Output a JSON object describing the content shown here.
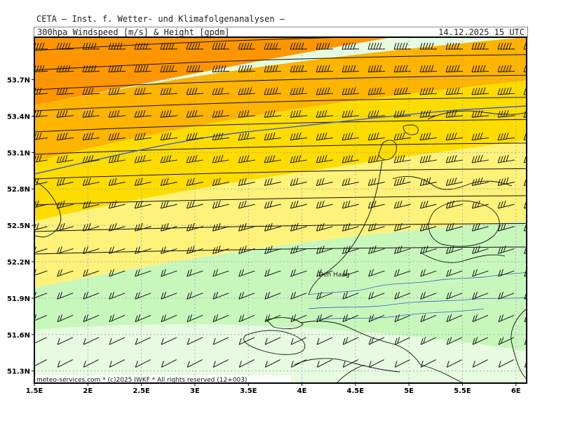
{
  "header": {
    "provider": "CETA – Inst. f. Wetter- und Klimafolgenanalysen –",
    "parameter": "300hpa Windspeed [m/s] & Height [gpdm]",
    "valid_time": "14.12.2025 15 UTC"
  },
  "map": {
    "lon_range": [
      1.5,
      6.1
    ],
    "lat_range": [
      51.2,
      54.05
    ],
    "lat_ticks": [
      {
        "value": 53.7,
        "label": "53.7N"
      },
      {
        "value": 53.4,
        "label": "53.4N"
      },
      {
        "value": 53.1,
        "label": "53.1N"
      },
      {
        "value": 52.8,
        "label": "52.8N"
      },
      {
        "value": 52.5,
        "label": "52.5N"
      },
      {
        "value": 52.2,
        "label": "52.2N"
      },
      {
        "value": 51.9,
        "label": "51.9N"
      },
      {
        "value": 51.6,
        "label": "51.6N"
      },
      {
        "value": 51.3,
        "label": "51.3N"
      }
    ],
    "lon_ticks": [
      {
        "value": 1.5,
        "label": "1.5E"
      },
      {
        "value": 2.0,
        "label": "2E"
      },
      {
        "value": 2.5,
        "label": "2.5E"
      },
      {
        "value": 3.0,
        "label": "3E"
      },
      {
        "value": 3.5,
        "label": "3.5E"
      },
      {
        "value": 4.0,
        "label": "4E"
      },
      {
        "value": 4.5,
        "label": "4.5E"
      },
      {
        "value": 5.0,
        "label": "5E"
      },
      {
        "value": 5.5,
        "label": "5.5E"
      },
      {
        "value": 6.0,
        "label": "6E"
      }
    ],
    "places": [
      {
        "name": "Den Haag",
        "lon": 4.3,
        "lat": 52.08
      }
    ],
    "wind_colors": {
      "pale_green": "#e6fbe0",
      "light_green": "#c8f7bc",
      "pale_yellow": "#fff27a",
      "yellow": "#ffdc00",
      "orange_yellow": "#ffb400",
      "orange": "#ff9600",
      "dark_orange": "#ff8a00"
    },
    "contour_color": "#3a5fcd",
    "credit": "meteo-services.com * (c)2025 IWKF * All rights reserved (12+003)"
  }
}
